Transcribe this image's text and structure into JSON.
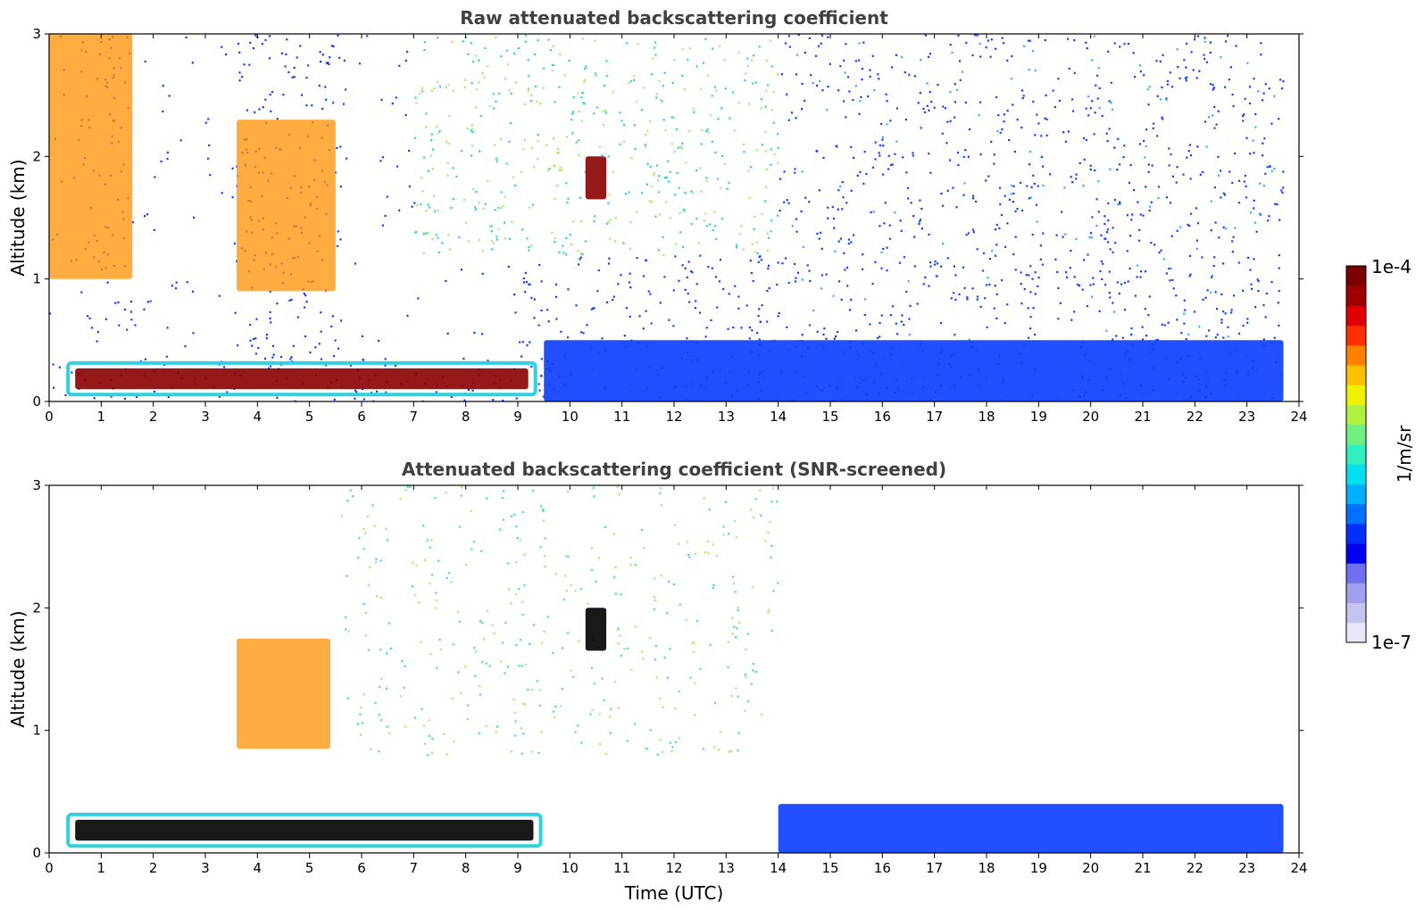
{
  "chart_data": [
    {
      "type": "heatmap",
      "title": "Raw attenuated backscattering coefficient",
      "xlabel": "",
      "ylabel": "Altitude (km)",
      "xlim": [
        0,
        24
      ],
      "ylim": [
        0,
        3
      ],
      "x_ticks": [
        "0",
        "1",
        "2",
        "3",
        "4",
        "5",
        "6",
        "7",
        "8",
        "9",
        "10",
        "11",
        "12",
        "13",
        "14",
        "15",
        "16",
        "17",
        "18",
        "19",
        "20",
        "21",
        "22",
        "23",
        "24"
      ],
      "y_ticks": [
        "0",
        "1",
        "2",
        "3"
      ],
      "data_end_time": 23.7,
      "features": [
        {
          "name": "boundary layer aerosol",
          "t_start": 0.5,
          "t_end": 9.2,
          "alt_bottom": 0.1,
          "alt_top": 0.27,
          "level": "1e-4"
        },
        {
          "name": "cloud near 4-5 UTC",
          "t_start": 3.6,
          "t_end": 5.5,
          "alt_bottom": 0.9,
          "alt_top": 2.3,
          "level": "high"
        },
        {
          "name": "cirrus near 0-1.5 UTC",
          "t_start": 0.0,
          "t_end": 1.6,
          "alt_bottom": 1.0,
          "alt_top": 3.0,
          "level": "high"
        },
        {
          "name": "cloud near 10.5 UTC",
          "t_start": 10.3,
          "t_end": 10.7,
          "alt_bottom": 1.65,
          "alt_top": 2.0,
          "level": "1e-4"
        },
        {
          "name": "afternoon mixed layer",
          "t_start": 9.5,
          "t_end": 23.7,
          "alt_bottom": 0.0,
          "alt_top": 0.5,
          "level": "low"
        }
      ]
    },
    {
      "type": "heatmap",
      "title": "Attenuated backscattering coefficient (SNR-screened)",
      "xlabel": "Time (UTC)",
      "ylabel": "Altitude (km)",
      "xlim": [
        0,
        24
      ],
      "ylim": [
        0,
        3
      ],
      "x_ticks": [
        "0",
        "1",
        "2",
        "3",
        "4",
        "5",
        "6",
        "7",
        "8",
        "9",
        "10",
        "11",
        "12",
        "13",
        "14",
        "15",
        "16",
        "17",
        "18",
        "19",
        "20",
        "21",
        "22",
        "23",
        "24"
      ],
      "y_ticks": [
        "0",
        "1",
        "2",
        "3"
      ],
      "data_end_time": 23.7,
      "features": [
        {
          "name": "boundary layer aerosol",
          "t_start": 0.5,
          "t_end": 9.3,
          "alt_bottom": 0.1,
          "alt_top": 0.27,
          "level": "saturated"
        },
        {
          "name": "cloud near 4-5 UTC",
          "t_start": 3.6,
          "t_end": 5.4,
          "alt_bottom": 0.85,
          "alt_top": 1.75,
          "level": "high"
        },
        {
          "name": "cloud near 10.5 UTC",
          "t_start": 10.3,
          "t_end": 10.7,
          "alt_bottom": 1.65,
          "alt_top": 2.0,
          "level": "saturated"
        },
        {
          "name": "afternoon mixed layer",
          "t_start": 14.0,
          "t_end": 23.7,
          "alt_bottom": 0.0,
          "alt_top": 0.4,
          "level": "low"
        }
      ]
    }
  ],
  "colorbar": {
    "label": "1/m/sr",
    "max_label": "1e-4",
    "min_label": "1e-7",
    "colors": [
      "#e8e8f8",
      "#c4c4f0",
      "#a0a0f0",
      "#6f6ff2",
      "#0000f0",
      "#0030ff",
      "#0070ff",
      "#00b0ff",
      "#00e0f0",
      "#30f0c0",
      "#70f080",
      "#b0f040",
      "#f0f000",
      "#ffc000",
      "#ff8000",
      "#ff3000",
      "#e00000",
      "#a00000",
      "#7a0000"
    ]
  },
  "theme": {
    "low": "#0a3cff",
    "mid": "#30e0c0",
    "high": "#ff9000",
    "peak": "#8b0000",
    "saturated": "#000000"
  }
}
